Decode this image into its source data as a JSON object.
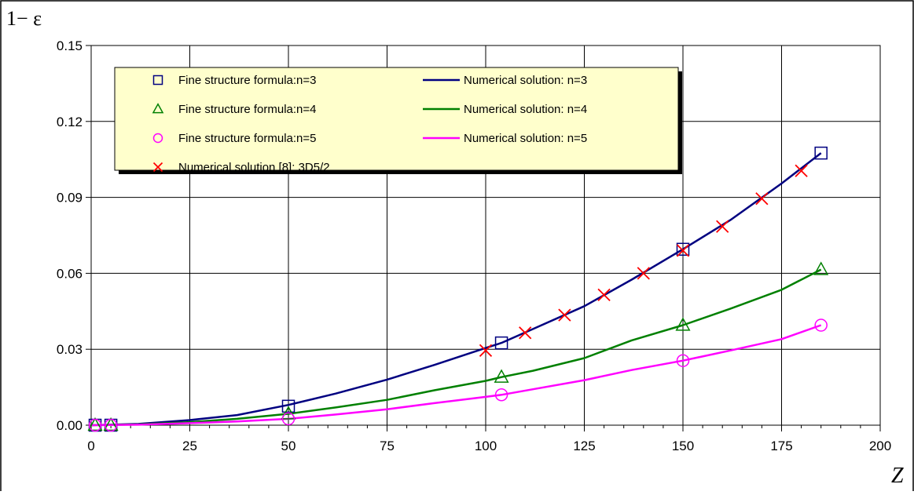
{
  "chart_data": {
    "type": "line",
    "ylabel": "1− ε",
    "xlabel": "Z",
    "xlim": [
      0,
      200
    ],
    "ylim": [
      0,
      0.15
    ],
    "x_ticks": [
      "0",
      "25",
      "50",
      "75",
      "100",
      "125",
      "150",
      "175",
      "200"
    ],
    "y_ticks": [
      "0.00",
      "0.03",
      "0.06",
      "0.09",
      "0.12",
      "0.15"
    ],
    "grid": true,
    "legend_placement": "top-left",
    "colors": {
      "n3": "#000080",
      "n4": "#008000",
      "n5": "#ff00ff",
      "ref": "#ff0000",
      "legend_bg": "#ffffcc",
      "grid": "#000000"
    },
    "series": [
      {
        "name": "Fine structure formula:n=3",
        "kind": "markers",
        "marker": "square",
        "color": "#000080",
        "x": [
          1,
          5,
          50,
          104,
          150,
          185
        ],
        "y": [
          0.0,
          0.0,
          0.0075,
          0.0325,
          0.0695,
          0.1075
        ]
      },
      {
        "name": "Fine structure formula:n=4",
        "kind": "markers",
        "marker": "triangle",
        "color": "#008000",
        "x": [
          1,
          5,
          50,
          104,
          150,
          185
        ],
        "y": [
          0.0,
          0.0,
          0.0045,
          0.019,
          0.0395,
          0.0615
        ]
      },
      {
        "name": "Fine structure formula:n=5",
        "kind": "markers",
        "marker": "circle",
        "color": "#ff00ff",
        "x": [
          1,
          5,
          50,
          104,
          150,
          185
        ],
        "y": [
          0.0,
          0.0,
          0.0025,
          0.012,
          0.0255,
          0.0395
        ]
      },
      {
        "name": "Numerical solution [8]: 3D5/2",
        "kind": "markers",
        "marker": "cross",
        "color": "#ff0000",
        "x": [
          100,
          110,
          120,
          130,
          140,
          150,
          160,
          170,
          180
        ],
        "y": [
          0.0295,
          0.0365,
          0.0435,
          0.0515,
          0.06,
          0.069,
          0.0785,
          0.0895,
          0.1005
        ]
      },
      {
        "name": "Numerical solution: n=3",
        "kind": "line",
        "color": "#000080",
        "x": [
          0,
          12,
          25,
          37,
          50,
          62,
          75,
          87,
          100,
          104,
          112,
          125,
          137,
          150,
          162,
          175,
          185
        ],
        "y": [
          0,
          0.0005,
          0.002,
          0.004,
          0.008,
          0.0125,
          0.018,
          0.0238,
          0.0305,
          0.0325,
          0.038,
          0.047,
          0.0575,
          0.0695,
          0.081,
          0.0955,
          0.1075
        ]
      },
      {
        "name": "Numerical solution: n=4",
        "kind": "line",
        "color": "#008000",
        "x": [
          0,
          12,
          25,
          37,
          50,
          62,
          75,
          87,
          100,
          104,
          112,
          125,
          137,
          150,
          162,
          175,
          185
        ],
        "y": [
          0,
          0.0003,
          0.0012,
          0.0025,
          0.0045,
          0.007,
          0.01,
          0.0138,
          0.0175,
          0.019,
          0.0215,
          0.0265,
          0.0335,
          0.0395,
          0.046,
          0.0535,
          0.0615
        ]
      },
      {
        "name": "Numerical solution: n=5",
        "kind": "line",
        "color": "#ff00ff",
        "x": [
          0,
          12,
          25,
          37,
          50,
          62,
          75,
          87,
          100,
          104,
          112,
          125,
          137,
          150,
          162,
          175,
          185
        ],
        "y": [
          0,
          0.0002,
          0.0008,
          0.0015,
          0.0025,
          0.0042,
          0.0063,
          0.0087,
          0.0112,
          0.012,
          0.0142,
          0.0178,
          0.0218,
          0.0255,
          0.0295,
          0.034,
          0.0395
        ]
      }
    ],
    "legend_layout": {
      "left_column": [
        0,
        1,
        2,
        3
      ],
      "right_column": [
        4,
        5,
        6
      ]
    }
  }
}
